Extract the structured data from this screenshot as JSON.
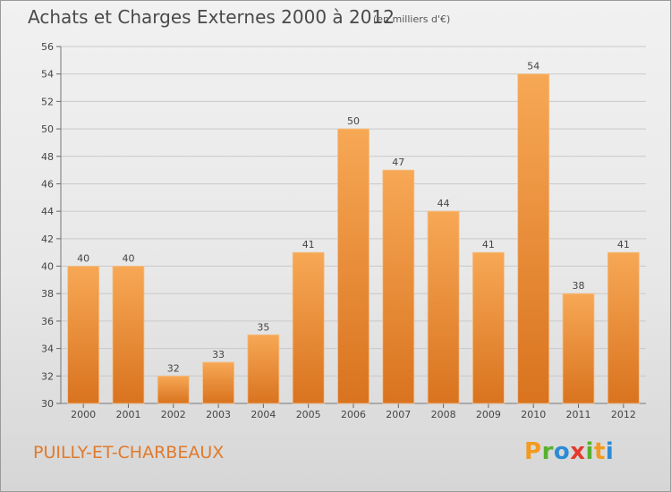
{
  "header": {
    "title": "Achats et Charges Externes 2000 à 2012",
    "subtitle": "(en milliers d'€)"
  },
  "footer": {
    "commune": "PUILLY-ET-CHARBEAUX",
    "logo_text": "Proxiti"
  },
  "colors": {
    "bar_light": "#f7a855",
    "bar_dark": "#d9731f",
    "commune_text": "#e07a2c"
  },
  "chart_data": {
    "type": "bar",
    "title": "Achats et Charges Externes 2000 à 2012",
    "subtitle": "(en milliers d'€)",
    "xlabel": "",
    "ylabel": "",
    "categories": [
      "2000",
      "2001",
      "2002",
      "2003",
      "2004",
      "2005",
      "2006",
      "2007",
      "2008",
      "2009",
      "2010",
      "2011",
      "2012"
    ],
    "values": [
      40,
      40,
      32,
      33,
      35,
      41,
      50,
      47,
      44,
      41,
      54,
      38,
      41
    ],
    "ylim": [
      30,
      56
    ],
    "yticks": [
      30,
      32,
      34,
      36,
      38,
      40,
      42,
      44,
      46,
      48,
      50,
      52,
      54,
      56
    ],
    "grid": true,
    "data_labels": true
  }
}
